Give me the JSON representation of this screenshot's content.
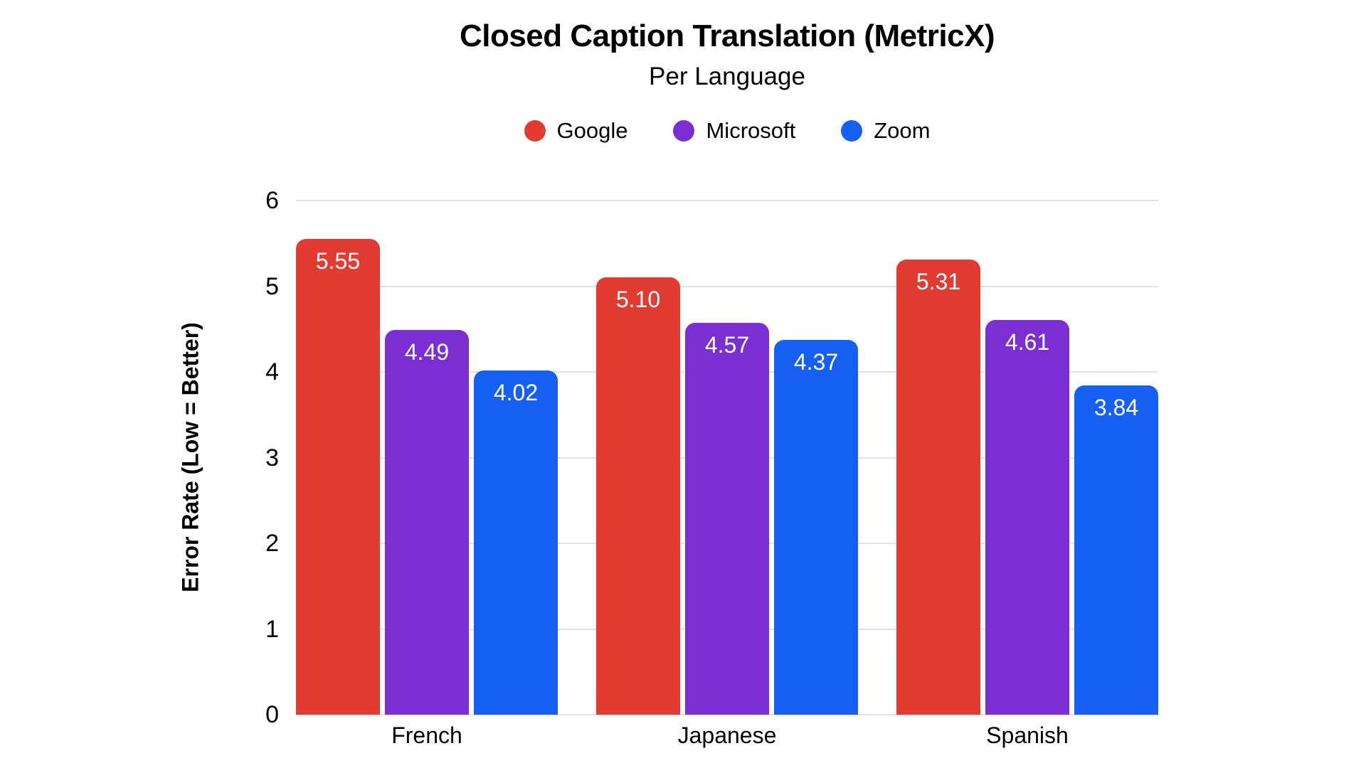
{
  "chart_data": {
    "type": "bar",
    "title": "Closed Caption Translation (MetricX)",
    "subtitle": "Per Language",
    "ylabel": "Error Rate (Low = Better)",
    "xlabel": "",
    "categories": [
      "French",
      "Japanese",
      "Spanish"
    ],
    "series": [
      {
        "name": "Google",
        "color": "#e23b32",
        "values": [
          5.55,
          5.1,
          5.31
        ]
      },
      {
        "name": "Microsoft",
        "color": "#7b2fd2",
        "values": [
          4.49,
          4.57,
          4.61
        ]
      },
      {
        "name": "Zoom",
        "color": "#155ff2",
        "values": [
          4.02,
          4.37,
          3.84
        ]
      }
    ],
    "value_labels": [
      [
        "5.55",
        "5.10",
        "5.31"
      ],
      [
        "4.49",
        "4.57",
        "4.61"
      ],
      [
        "4.02",
        "4.37",
        "3.84"
      ]
    ],
    "ylim": [
      0,
      6
    ],
    "yticks": [
      0,
      1,
      2,
      3,
      4,
      5,
      6
    ],
    "grid": true,
    "gridline_color": "#e2e2e2",
    "legend_position": "top",
    "background_color": "#ffffff"
  }
}
